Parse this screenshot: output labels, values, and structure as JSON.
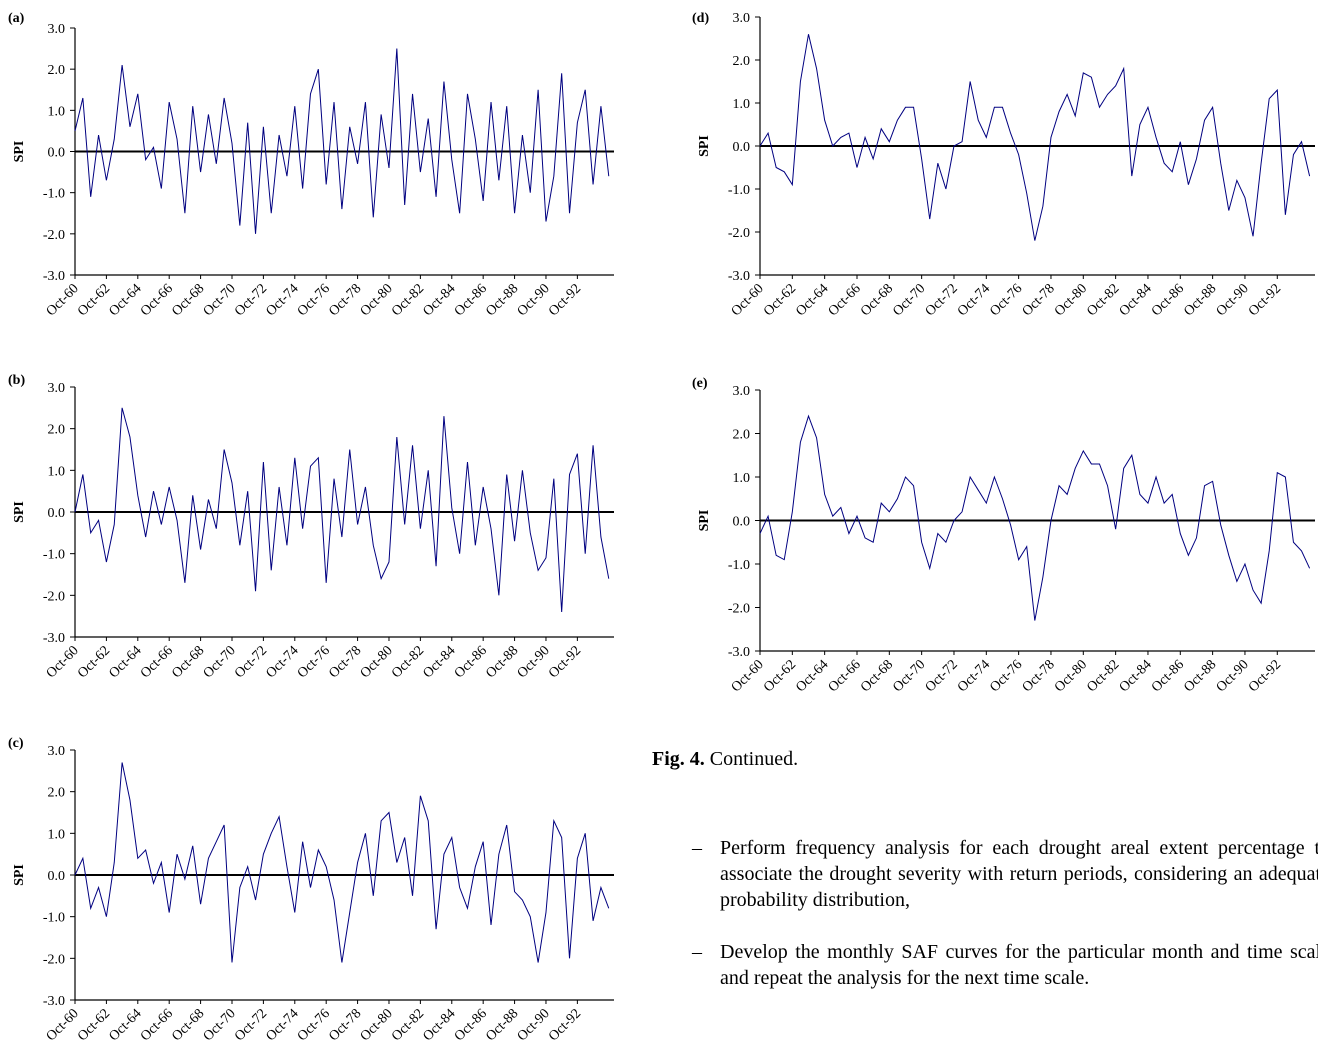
{
  "chart_data": [
    {
      "type": "line",
      "panel": "(a)",
      "ylabel": "SPI",
      "color": "#000080",
      "x": [
        0,
        6,
        12,
        18,
        24,
        30,
        36,
        42,
        48,
        54,
        60,
        66,
        72,
        78,
        84,
        90,
        96,
        102,
        108,
        114,
        120,
        126,
        132,
        138,
        144,
        150,
        156,
        162,
        168,
        174,
        180,
        186,
        192,
        198,
        204,
        210,
        216,
        222,
        228,
        234,
        240,
        246,
        252,
        258,
        264,
        270,
        276,
        282,
        288,
        294,
        300,
        306,
        312,
        318,
        324,
        330,
        336,
        342,
        348,
        354,
        360,
        366,
        372,
        378,
        384,
        390,
        396,
        402,
        408
      ],
      "values": [
        0.5,
        1.3,
        -1.1,
        0.4,
        -0.7,
        0.3,
        2.1,
        0.6,
        1.4,
        -0.2,
        0.1,
        -0.9,
        1.2,
        0.3,
        -1.5,
        1.1,
        -0.5,
        0.9,
        -0.3,
        1.3,
        0.2,
        -1.8,
        0.7,
        -2.0,
        0.6,
        -1.5,
        0.4,
        -0.6,
        1.1,
        -0.9,
        1.4,
        2.0,
        -0.8,
        1.2,
        -1.4,
        0.6,
        -0.3,
        1.2,
        -1.6,
        0.9,
        -0.4,
        2.5,
        -1.3,
        1.4,
        -0.5,
        0.8,
        -1.1,
        1.7,
        -0.2,
        -1.5,
        1.4,
        0.3,
        -1.2,
        1.2,
        -0.7,
        1.1,
        -1.5,
        0.4,
        -1.0,
        1.5,
        -1.7,
        -0.6,
        1.9,
        -1.5,
        0.7,
        1.5,
        -0.8,
        1.1,
        -0.6
      ],
      "xlim": [
        0,
        412
      ],
      "xticks": [
        {
          "value": 0,
          "label": "Oct-60"
        },
        {
          "value": 24,
          "label": "Oct-62"
        },
        {
          "value": 48,
          "label": "Oct-64"
        },
        {
          "value": 72,
          "label": "Oct-66"
        },
        {
          "value": 96,
          "label": "Oct-68"
        },
        {
          "value": 120,
          "label": "Oct-70"
        },
        {
          "value": 144,
          "label": "Oct-72"
        },
        {
          "value": 168,
          "label": "Oct-74"
        },
        {
          "value": 192,
          "label": "Oct-76"
        },
        {
          "value": 216,
          "label": "Oct-78"
        },
        {
          "value": 240,
          "label": "Oct-80"
        },
        {
          "value": 264,
          "label": "Oct-82"
        },
        {
          "value": 288,
          "label": "Oct-84"
        },
        {
          "value": 312,
          "label": "Oct-86"
        },
        {
          "value": 336,
          "label": "Oct-88"
        },
        {
          "value": 360,
          "label": "Oct-90"
        },
        {
          "value": 384,
          "label": "Oct-92"
        }
      ],
      "ylim": [
        -3,
        3
      ],
      "yticks": [
        {
          "value": -3,
          "label": "-3.0"
        },
        {
          "value": -2,
          "label": "-2.0"
        },
        {
          "value": -1,
          "label": "-1.0"
        },
        {
          "value": 0,
          "label": "0.0"
        },
        {
          "value": 1,
          "label": "1.0"
        },
        {
          "value": 2,
          "label": "2.0"
        },
        {
          "value": 3,
          "label": "3.0"
        }
      ]
    },
    {
      "type": "line",
      "panel": "(b)",
      "ylabel": "SPI",
      "color": "#000080",
      "x": [
        0,
        6,
        12,
        18,
        24,
        30,
        36,
        42,
        48,
        54,
        60,
        66,
        72,
        78,
        84,
        90,
        96,
        102,
        108,
        114,
        120,
        126,
        132,
        138,
        144,
        150,
        156,
        162,
        168,
        174,
        180,
        186,
        192,
        198,
        204,
        210,
        216,
        222,
        228,
        234,
        240,
        246,
        252,
        258,
        264,
        270,
        276,
        282,
        288,
        294,
        300,
        306,
        312,
        318,
        324,
        330,
        336,
        342,
        348,
        354,
        360,
        366,
        372,
        378,
        384,
        390,
        396,
        402,
        408
      ],
      "values": [
        0.0,
        0.9,
        -0.5,
        -0.2,
        -1.2,
        -0.3,
        2.5,
        1.8,
        0.4,
        -0.6,
        0.5,
        -0.3,
        0.6,
        -0.2,
        -1.7,
        0.4,
        -0.9,
        0.3,
        -0.4,
        1.5,
        0.7,
        -0.8,
        0.5,
        -1.9,
        1.2,
        -1.4,
        0.6,
        -0.8,
        1.3,
        -0.4,
        1.1,
        1.3,
        -1.7,
        0.8,
        -0.6,
        1.5,
        -0.3,
        0.6,
        -0.8,
        -1.6,
        -1.2,
        1.8,
        -0.3,
        1.6,
        -0.4,
        1.0,
        -1.3,
        2.3,
        0.1,
        -1.0,
        1.2,
        -0.8,
        0.6,
        -0.4,
        -2.0,
        0.9,
        -0.7,
        1.0,
        -0.5,
        -1.4,
        -1.1,
        0.8,
        -2.4,
        0.9,
        1.4,
        -1.0,
        1.6,
        -0.6,
        -1.6
      ],
      "xlim": [
        0,
        412
      ],
      "xticks": [
        {
          "value": 0,
          "label": "Oct-60"
        },
        {
          "value": 24,
          "label": "Oct-62"
        },
        {
          "value": 48,
          "label": "Oct-64"
        },
        {
          "value": 72,
          "label": "Oct-66"
        },
        {
          "value": 96,
          "label": "Oct-68"
        },
        {
          "value": 120,
          "label": "Oct-70"
        },
        {
          "value": 144,
          "label": "Oct-72"
        },
        {
          "value": 168,
          "label": "Oct-74"
        },
        {
          "value": 192,
          "label": "Oct-76"
        },
        {
          "value": 216,
          "label": "Oct-78"
        },
        {
          "value": 240,
          "label": "Oct-80"
        },
        {
          "value": 264,
          "label": "Oct-82"
        },
        {
          "value": 288,
          "label": "Oct-84"
        },
        {
          "value": 312,
          "label": "Oct-86"
        },
        {
          "value": 336,
          "label": "Oct-88"
        },
        {
          "value": 360,
          "label": "Oct-90"
        },
        {
          "value": 384,
          "label": "Oct-92"
        }
      ],
      "ylim": [
        -3,
        3
      ],
      "yticks": [
        {
          "value": -3,
          "label": "-3.0"
        },
        {
          "value": -2,
          "label": "-2.0"
        },
        {
          "value": -1,
          "label": "-1.0"
        },
        {
          "value": 0,
          "label": "0.0"
        },
        {
          "value": 1,
          "label": "1.0"
        },
        {
          "value": 2,
          "label": "2.0"
        },
        {
          "value": 3,
          "label": "3.0"
        }
      ]
    },
    {
      "type": "line",
      "panel": "(c)",
      "ylabel": "SPI",
      "color": "#000080",
      "x": [
        0,
        6,
        12,
        18,
        24,
        30,
        36,
        42,
        48,
        54,
        60,
        66,
        72,
        78,
        84,
        90,
        96,
        102,
        108,
        114,
        120,
        126,
        132,
        138,
        144,
        150,
        156,
        162,
        168,
        174,
        180,
        186,
        192,
        198,
        204,
        210,
        216,
        222,
        228,
        234,
        240,
        246,
        252,
        258,
        264,
        270,
        276,
        282,
        288,
        294,
        300,
        306,
        312,
        318,
        324,
        330,
        336,
        342,
        348,
        354,
        360,
        366,
        372,
        378,
        384,
        390,
        396,
        402,
        408
      ],
      "values": [
        0.0,
        0.4,
        -0.8,
        -0.3,
        -1.0,
        0.3,
        2.7,
        1.8,
        0.4,
        0.6,
        -0.2,
        0.3,
        -0.9,
        0.5,
        -0.1,
        0.7,
        -0.7,
        0.4,
        0.8,
        1.2,
        -2.1,
        -0.3,
        0.2,
        -0.6,
        0.5,
        1.0,
        1.4,
        0.2,
        -0.9,
        0.8,
        -0.3,
        0.6,
        0.2,
        -0.6,
        -2.1,
        -0.9,
        0.3,
        1.0,
        -0.5,
        1.3,
        1.5,
        0.3,
        0.9,
        -0.5,
        1.9,
        1.3,
        -1.3,
        0.5,
        0.9,
        -0.3,
        -0.8,
        0.2,
        0.8,
        -1.2,
        0.5,
        1.2,
        -0.4,
        -0.6,
        -1.0,
        -2.1,
        -0.9,
        1.3,
        0.9,
        -2.0,
        0.4,
        1.0,
        -1.1,
        -0.3,
        -0.8
      ],
      "xlim": [
        0,
        412
      ],
      "xticks": [
        {
          "value": 0,
          "label": "Oct-60"
        },
        {
          "value": 24,
          "label": "Oct-62"
        },
        {
          "value": 48,
          "label": "Oct-64"
        },
        {
          "value": 72,
          "label": "Oct-66"
        },
        {
          "value": 96,
          "label": "Oct-68"
        },
        {
          "value": 120,
          "label": "Oct-70"
        },
        {
          "value": 144,
          "label": "Oct-72"
        },
        {
          "value": 168,
          "label": "Oct-74"
        },
        {
          "value": 192,
          "label": "Oct-76"
        },
        {
          "value": 216,
          "label": "Oct-78"
        },
        {
          "value": 240,
          "label": "Oct-80"
        },
        {
          "value": 264,
          "label": "Oct-82"
        },
        {
          "value": 288,
          "label": "Oct-84"
        },
        {
          "value": 312,
          "label": "Oct-86"
        },
        {
          "value": 336,
          "label": "Oct-88"
        },
        {
          "value": 360,
          "label": "Oct-90"
        },
        {
          "value": 384,
          "label": "Oct-92"
        }
      ],
      "ylim": [
        -3,
        3
      ],
      "yticks": [
        {
          "value": -3,
          "label": "-3.0"
        },
        {
          "value": -2,
          "label": "-2.0"
        },
        {
          "value": -1,
          "label": "-1.0"
        },
        {
          "value": 0,
          "label": "0.0"
        },
        {
          "value": 1,
          "label": "1.0"
        },
        {
          "value": 2,
          "label": "2.0"
        },
        {
          "value": 3,
          "label": "3.0"
        }
      ]
    },
    {
      "type": "line",
      "panel": "(d)",
      "ylabel": "SPI",
      "color": "#000080",
      "x": [
        0,
        6,
        12,
        18,
        24,
        30,
        36,
        42,
        48,
        54,
        60,
        66,
        72,
        78,
        84,
        90,
        96,
        102,
        108,
        114,
        120,
        126,
        132,
        138,
        144,
        150,
        156,
        162,
        168,
        174,
        180,
        186,
        192,
        198,
        204,
        210,
        216,
        222,
        228,
        234,
        240,
        246,
        252,
        258,
        264,
        270,
        276,
        282,
        288,
        294,
        300,
        306,
        312,
        318,
        324,
        330,
        336,
        342,
        348,
        354,
        360,
        366,
        372,
        378,
        384,
        390,
        396,
        402,
        408
      ],
      "values": [
        0.0,
        0.3,
        -0.5,
        -0.6,
        -0.9,
        1.5,
        2.6,
        1.8,
        0.6,
        0.0,
        0.2,
        0.3,
        -0.5,
        0.2,
        -0.3,
        0.4,
        0.1,
        0.6,
        0.9,
        0.9,
        -0.3,
        -1.7,
        -0.4,
        -1.0,
        0.0,
        0.1,
        1.5,
        0.6,
        0.2,
        0.9,
        0.9,
        0.3,
        -0.2,
        -1.1,
        -2.2,
        -1.4,
        0.2,
        0.8,
        1.2,
        0.7,
        1.7,
        1.6,
        0.9,
        1.2,
        1.4,
        1.8,
        -0.7,
        0.5,
        0.9,
        0.2,
        -0.4,
        -0.6,
        0.1,
        -0.9,
        -0.3,
        0.6,
        0.9,
        -0.4,
        -1.5,
        -0.8,
        -1.2,
        -2.1,
        -0.4,
        1.1,
        1.3,
        -1.6,
        -0.2,
        0.1,
        -0.7
      ],
      "xlim": [
        0,
        412
      ],
      "xticks": [
        {
          "value": 0,
          "label": "Oct-60"
        },
        {
          "value": 24,
          "label": "Oct-62"
        },
        {
          "value": 48,
          "label": "Oct-64"
        },
        {
          "value": 72,
          "label": "Oct-66"
        },
        {
          "value": 96,
          "label": "Oct-68"
        },
        {
          "value": 120,
          "label": "Oct-70"
        },
        {
          "value": 144,
          "label": "Oct-72"
        },
        {
          "value": 168,
          "label": "Oct-74"
        },
        {
          "value": 192,
          "label": "Oct-76"
        },
        {
          "value": 216,
          "label": "Oct-78"
        },
        {
          "value": 240,
          "label": "Oct-80"
        },
        {
          "value": 264,
          "label": "Oct-82"
        },
        {
          "value": 288,
          "label": "Oct-84"
        },
        {
          "value": 312,
          "label": "Oct-86"
        },
        {
          "value": 336,
          "label": "Oct-88"
        },
        {
          "value": 360,
          "label": "Oct-90"
        },
        {
          "value": 384,
          "label": "Oct-92"
        }
      ],
      "ylim": [
        -3,
        3
      ],
      "yticks": [
        {
          "value": -3,
          "label": "-3.0"
        },
        {
          "value": -2,
          "label": "-2.0"
        },
        {
          "value": -1,
          "label": "-1.0"
        },
        {
          "value": 0,
          "label": "0.0"
        },
        {
          "value": 1,
          "label": "1.0"
        },
        {
          "value": 2,
          "label": "2.0"
        },
        {
          "value": 3,
          "label": "3.0"
        }
      ]
    },
    {
      "type": "line",
      "panel": "(e)",
      "ylabel": "SPI",
      "color": "#000080",
      "x": [
        0,
        6,
        12,
        18,
        24,
        30,
        36,
        42,
        48,
        54,
        60,
        66,
        72,
        78,
        84,
        90,
        96,
        102,
        108,
        114,
        120,
        126,
        132,
        138,
        144,
        150,
        156,
        162,
        168,
        174,
        180,
        186,
        192,
        198,
        204,
        210,
        216,
        222,
        228,
        234,
        240,
        246,
        252,
        258,
        264,
        270,
        276,
        282,
        288,
        294,
        300,
        306,
        312,
        318,
        324,
        330,
        336,
        342,
        348,
        354,
        360,
        366,
        372,
        378,
        384,
        390,
        396,
        402,
        408
      ],
      "values": [
        -0.3,
        0.1,
        -0.8,
        -0.9,
        0.2,
        1.8,
        2.4,
        1.9,
        0.6,
        0.1,
        0.3,
        -0.3,
        0.1,
        -0.4,
        -0.5,
        0.4,
        0.2,
        0.5,
        1.0,
        0.8,
        -0.5,
        -1.1,
        -0.3,
        -0.5,
        0.0,
        0.2,
        1.0,
        0.7,
        0.4,
        1.0,
        0.5,
        -0.1,
        -0.9,
        -0.6,
        -2.3,
        -1.3,
        0.0,
        0.8,
        0.6,
        1.2,
        1.6,
        1.3,
        1.3,
        0.8,
        -0.2,
        1.2,
        1.5,
        0.6,
        0.4,
        1.0,
        0.4,
        0.6,
        -0.3,
        -0.8,
        -0.4,
        0.8,
        0.9,
        -0.1,
        -0.8,
        -1.4,
        -1.0,
        -1.6,
        -1.9,
        -0.7,
        1.1,
        1.0,
        -0.5,
        -0.7,
        -1.1
      ],
      "xlim": [
        0,
        412
      ],
      "xticks": [
        {
          "value": 0,
          "label": "Oct-60"
        },
        {
          "value": 24,
          "label": "Oct-62"
        },
        {
          "value": 48,
          "label": "Oct-64"
        },
        {
          "value": 72,
          "label": "Oct-66"
        },
        {
          "value": 96,
          "label": "Oct-68"
        },
        {
          "value": 120,
          "label": "Oct-70"
        },
        {
          "value": 144,
          "label": "Oct-72"
        },
        {
          "value": 168,
          "label": "Oct-74"
        },
        {
          "value": 192,
          "label": "Oct-76"
        },
        {
          "value": 216,
          "label": "Oct-78"
        },
        {
          "value": 240,
          "label": "Oct-80"
        },
        {
          "value": 264,
          "label": "Oct-82"
        },
        {
          "value": 288,
          "label": "Oct-84"
        },
        {
          "value": 312,
          "label": "Oct-86"
        },
        {
          "value": 336,
          "label": "Oct-88"
        },
        {
          "value": 360,
          "label": "Oct-90"
        },
        {
          "value": 384,
          "label": "Oct-92"
        }
      ],
      "ylim": [
        -3,
        3
      ],
      "yticks": [
        {
          "value": -3,
          "label": "-3.0"
        },
        {
          "value": -2,
          "label": "-2.0"
        },
        {
          "value": -1,
          "label": "-1.0"
        },
        {
          "value": 0,
          "label": "0.0"
        },
        {
          "value": 1,
          "label": "1.0"
        },
        {
          "value": 2,
          "label": "2.0"
        },
        {
          "value": 3,
          "label": "3.0"
        }
      ]
    }
  ],
  "caption": {
    "label": "Fig. 4.",
    "text": "Continued."
  },
  "bullets": [
    {
      "marker": "–",
      "text": "Perform frequency analysis for each drought areal extent percentage to associate the drought severity with return periods, considering an adequate probability distribution,"
    },
    {
      "marker": "–",
      "text": "Develop the monthly SAF curves for the particular month and time scale and repeat the analysis for the next time scale."
    }
  ]
}
